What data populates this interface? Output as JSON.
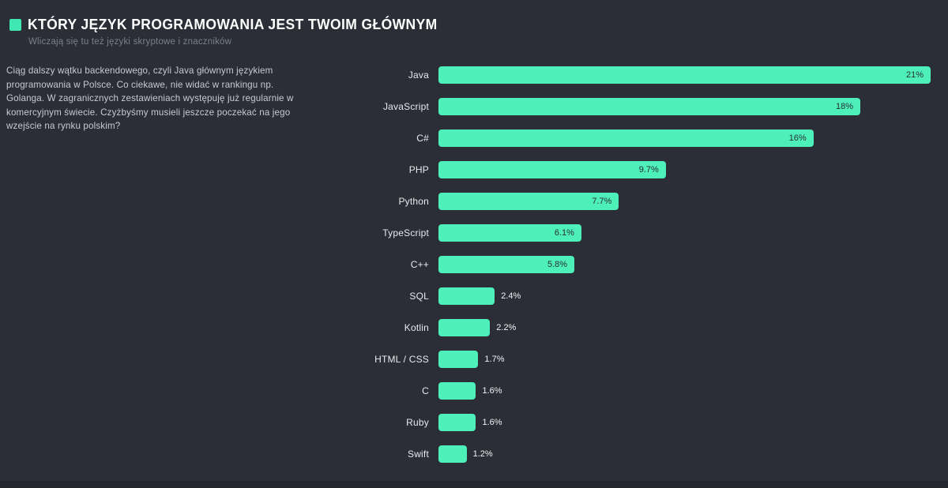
{
  "page": {
    "background_color": "#2b2e36",
    "footer_strip_color": "#24262d"
  },
  "header": {
    "bullet_icon": "teal-square-bullet",
    "bullet_color": "#3ee8b0",
    "title": "KTÓRY JĘZYK PROGRAMOWANIA JEST TWOIM GŁÓWNYM",
    "subtitle": "Wliczają się tu też języki skryptowe i znaczników"
  },
  "commentary": {
    "text": "Ciąg dalszy wątku backendowego, czyli Java głównym językiem programowania w Polsce. Co ciekawe, nie widać w rankingu np. Golanga. W zagranicznych zestawieniach występuję już regularnie w komercyjnym świecie. Czyżbyśmy musieli jeszcze poczekać na jego wzejście na rynku polskim?"
  },
  "chart_data": {
    "type": "bar",
    "orientation": "horizontal",
    "title": "KTÓRY JĘZYK PROGRAMOWANIA JEST TWOIM GŁÓWNYM",
    "categories": [
      "Java",
      "JavaScript",
      "C#",
      "PHP",
      "Python",
      "TypeScript",
      "C++",
      "SQL",
      "Kotlin",
      "HTML / CSS",
      "C",
      "Ruby",
      "Swift"
    ],
    "values": [
      21,
      18,
      16,
      9.7,
      7.7,
      6.1,
      5.8,
      2.4,
      2.2,
      1.7,
      1.6,
      1.6,
      1.2
    ],
    "value_labels": [
      "21%",
      "18%",
      "16%",
      "9.7%",
      "7.7%",
      "6.1%",
      "5.8%",
      "2.4%",
      "2.2%",
      "1.7%",
      "1.6%",
      "1.6%",
      "1.2%"
    ],
    "xlim": [
      0,
      21
    ],
    "bar_color": "#4df0b9",
    "value_inside_threshold": 3,
    "grid": false,
    "legend": false
  }
}
